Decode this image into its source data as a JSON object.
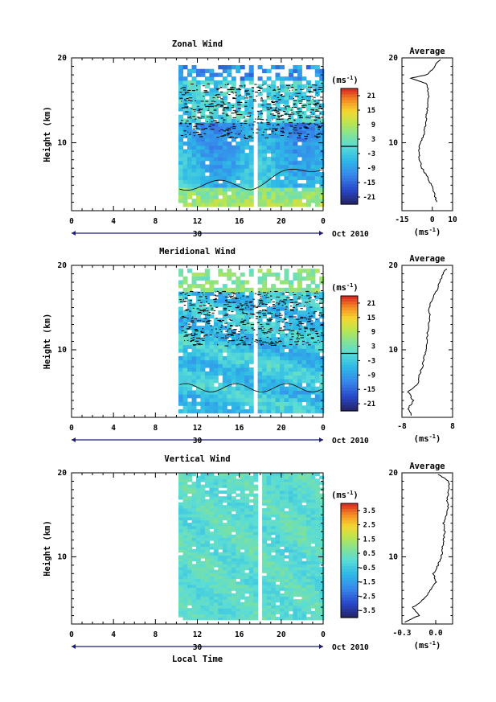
{
  "chart_data": [
    {
      "type": "heatmap",
      "title": "Zonal Wind",
      "ylabel": "Height (km)",
      "ylim": [
        2,
        20
      ],
      "yticks": [
        "20",
        "10"
      ],
      "xticks": [
        "0",
        "4",
        "8",
        "12",
        "16",
        "20",
        "0"
      ],
      "date_day": "30",
      "date_month": "Oct 2010",
      "colorbar": {
        "unit": "(ms",
        "unit_exp": "-1",
        "ticks": [
          "21",
          "15",
          "9",
          "3",
          "-3",
          "-9",
          "-15",
          "-21"
        ],
        "range": [
          -24,
          24
        ],
        "zero_line": true
      },
      "average": {
        "title": "Average",
        "xlim": [
          -15,
          10
        ],
        "xticks": [
          "-15",
          "0",
          "10"
        ],
        "unit": "(ms",
        "unit_exp": "-1",
        "profile": [
          [
            3,
            2.1
          ],
          [
            4,
            1
          ],
          [
            5,
            -0.5
          ],
          [
            6,
            -2.5
          ],
          [
            7,
            -5
          ],
          [
            8,
            -6.5
          ],
          [
            9,
            -6.5
          ],
          [
            10,
            -6
          ],
          [
            11,
            -4
          ],
          [
            12,
            -3.5
          ],
          [
            13,
            -3
          ],
          [
            14,
            -2.5
          ],
          [
            15,
            -2
          ],
          [
            16,
            -2
          ],
          [
            17,
            -3
          ],
          [
            17.6,
            -11
          ],
          [
            18,
            -3
          ],
          [
            18.6,
            0
          ],
          [
            19.3,
            2
          ],
          [
            19.8,
            4
          ]
        ]
      },
      "data_start_time": 10
    },
    {
      "type": "heatmap",
      "title": "Meridional Wind",
      "ylabel": "Height (km)",
      "ylim": [
        2,
        20
      ],
      "yticks": [
        "20",
        "10"
      ],
      "xticks": [
        "0",
        "4",
        "8",
        "12",
        "16",
        "20",
        "0"
      ],
      "date_day": "30",
      "date_month": "Oct 2010",
      "colorbar": {
        "unit": "(ms",
        "unit_exp": "-1",
        "ticks": [
          "21",
          "15",
          "9",
          "3",
          "-3",
          "-9",
          "-15",
          "-21"
        ],
        "range": [
          -24,
          24
        ],
        "zero_line": true
      },
      "average": {
        "title": "Average",
        "xlim": [
          -8,
          8
        ],
        "xticks": [
          "-8",
          "8"
        ],
        "unit": "(ms",
        "unit_exp": "-1",
        "profile": [
          [
            2.2,
            -5
          ],
          [
            3,
            -6
          ],
          [
            4,
            -4.5
          ],
          [
            5,
            -6
          ],
          [
            6,
            -3
          ],
          [
            7,
            -2.5
          ],
          [
            8,
            -1.5
          ],
          [
            9,
            -1
          ],
          [
            10,
            -0.5
          ],
          [
            11,
            0
          ],
          [
            12,
            0
          ],
          [
            13,
            0.5
          ],
          [
            14,
            0.8
          ],
          [
            15,
            0.5
          ],
          [
            16,
            1.5
          ],
          [
            17,
            3
          ],
          [
            18,
            4
          ],
          [
            19,
            5
          ],
          [
            19.6,
            6
          ]
        ]
      },
      "data_start_time": 10
    },
    {
      "type": "heatmap",
      "title": "Vertical Wind",
      "ylabel": "Height (km)",
      "ylim": [
        2,
        20
      ],
      "yticks": [
        "20",
        "10"
      ],
      "xticks": [
        "0",
        "4",
        "8",
        "12",
        "16",
        "20",
        "0"
      ],
      "date_day": "30",
      "date_month": "Oct 2010",
      "xlabel": "Local Time",
      "colorbar": {
        "unit": "(ms",
        "unit_exp": "-1",
        "ticks": [
          "3.5",
          "2.5",
          "1.5",
          "0.5",
          "-0.5",
          "-1.5",
          "-2.5",
          "-3.5"
        ],
        "range": [
          -4,
          4
        ],
        "zero_line": false
      },
      "average": {
        "title": "Average",
        "xlim": [
          -0.3,
          0.15
        ],
        "xticks": [
          "-0.3",
          "0.0"
        ],
        "unit": "(ms",
        "unit_exp": "-1",
        "profile": [
          [
            2.2,
            -0.28
          ],
          [
            3,
            -0.15
          ],
          [
            4,
            -0.2
          ],
          [
            5,
            -0.1
          ],
          [
            6,
            -0.05
          ],
          [
            7,
            0
          ],
          [
            8,
            -0.02
          ],
          [
            9,
            0.02
          ],
          [
            10,
            0.05
          ],
          [
            11,
            0.06
          ],
          [
            12,
            0.07
          ],
          [
            13,
            0.08
          ],
          [
            14,
            0.07
          ],
          [
            15,
            0.1
          ],
          [
            16,
            0.11
          ],
          [
            17,
            0.1
          ],
          [
            18,
            0.12
          ],
          [
            19,
            0.12
          ],
          [
            19.8,
            0.02
          ]
        ]
      },
      "data_start_time": 10
    }
  ]
}
